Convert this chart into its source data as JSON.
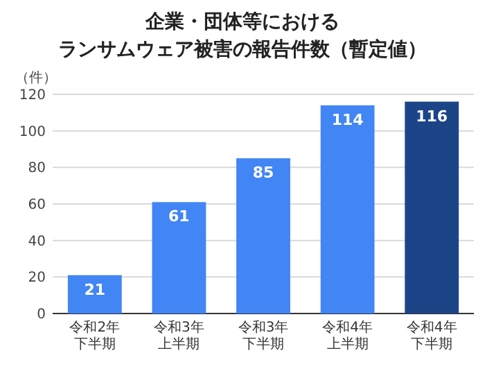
{
  "chart_data": {
    "type": "bar",
    "title": "企業・団体等におけるランサムウェア被害の報告件数（暫定値）",
    "ylabel": "（件）",
    "categories": [
      "令和2年下半期",
      "令和3年上半期",
      "令和3年下半期",
      "令和4年上半期",
      "令和4年下半期"
    ],
    "values": [
      21,
      61,
      85,
      114,
      116
    ],
    "colors": [
      "#4285f4",
      "#4285f4",
      "#4285f4",
      "#4285f4",
      "#1c4587"
    ],
    "ylim": [
      0,
      120
    ],
    "yticks": [
      0,
      20,
      40,
      60,
      80,
      100,
      120
    ],
    "grid": "y",
    "data_labels": true
  }
}
